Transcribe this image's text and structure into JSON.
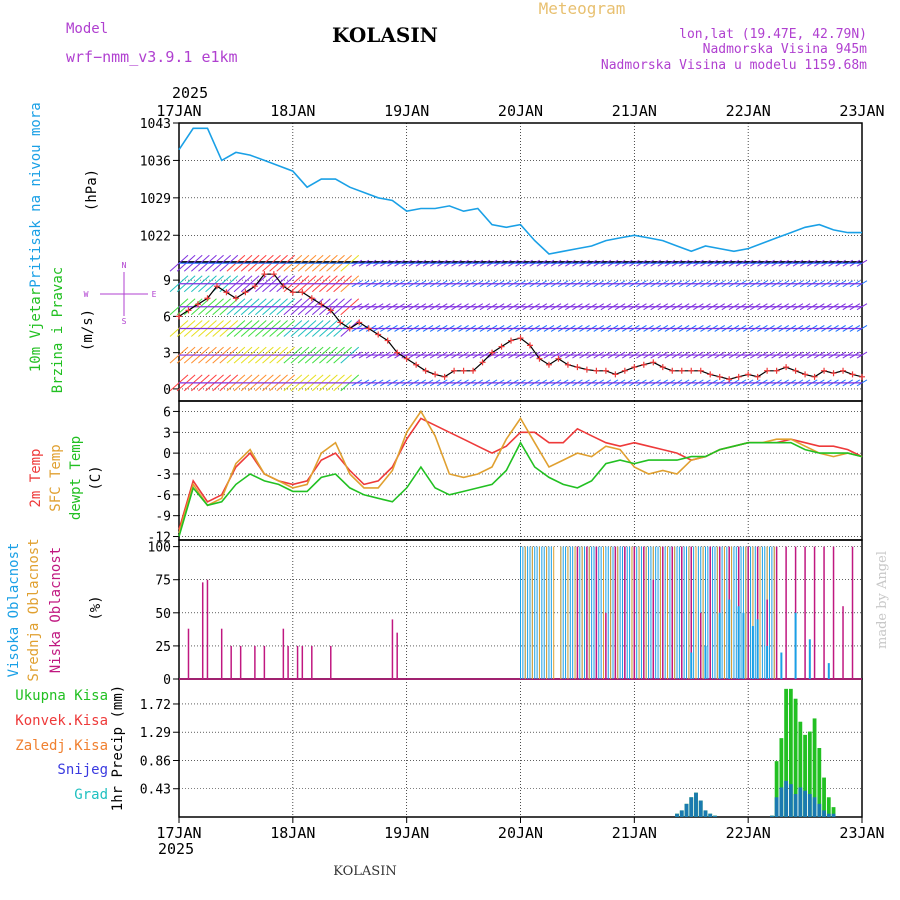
{
  "header": {
    "model_label": "Model",
    "model_name": "wrf−nmm_v3.9.1  e1km",
    "station": "KOLASIN",
    "product": "Meteogram",
    "lonlat": "lon,lat (19.47E, 42.79N)",
    "elevation": "Nadmorska Visina 945m",
    "model_elevation": "Nadmorska Visina u modelu 1159.68m",
    "footer_station": "KOLASIN",
    "credit": "made by Angel",
    "year_top": "2025",
    "year_bottom": "2025"
  },
  "colors": {
    "pressure": "#1aa0e6",
    "t2m": "#ee3a3a",
    "sfc": "#e0a030",
    "dewpt": "#22c022",
    "high_cloud": "#1aa0e6",
    "mid_cloud": "#e0a030",
    "low_cloud": "#c01880",
    "total_precip": "#22c022",
    "conv_precip": "#ee3a3a",
    "ice_precip": "#f08030",
    "snow": "#3a3ae0",
    "hail": "#20c0c0"
  },
  "legend_labels": {
    "pressure": [
      "Pritisak na nivou mora",
      "(hPa)"
    ],
    "wind": [
      "10m Vjetar",
      "Brzina i Pravac",
      "(m/s)"
    ],
    "wind_rose": [
      "N",
      "W",
      "E",
      "S"
    ],
    "temp": [
      "2m Temp",
      "SFC Temp",
      "dewpt Temp",
      "(C)"
    ],
    "cloud": [
      "Visoka Oblacnost",
      "Srednja Oblacnost",
      "Niska Oblacnost",
      "(%)"
    ],
    "precip": [
      "Ukupna Kisa",
      "Konvek.Kisa",
      "Zaledj.Kisa",
      "Snijeg",
      "Grad",
      "1hr Precip (mm)"
    ]
  },
  "chart_data": [
    {
      "type": "line",
      "title": "Pritisak na nivou mora",
      "ylabel": "(hPa)",
      "x_ticks": [
        "17JAN",
        "18JAN",
        "19JAN",
        "20JAN",
        "21JAN",
        "22JAN",
        "23JAN"
      ],
      "yticks": [
        1022,
        1029,
        1036,
        1043
      ],
      "ylim": [
        1017,
        1043
      ],
      "x": [
        0,
        3,
        6,
        9,
        12,
        15,
        18,
        21,
        24,
        27,
        30,
        33,
        36,
        39,
        42,
        45,
        48,
        51,
        54,
        57,
        60,
        63,
        66,
        69,
        72,
        75,
        78,
        81,
        84,
        87,
        90,
        93,
        96,
        99,
        102,
        105,
        108,
        111,
        114,
        117,
        120,
        123,
        126,
        129,
        132,
        135,
        138,
        141,
        144
      ],
      "series": [
        {
          "name": "Pritisak na nivou mora",
          "values": [
            1038,
            1042,
            1042,
            1036,
            1037.5,
            1037,
            1036,
            1035,
            1034,
            1031,
            1032.5,
            1032.5,
            1031,
            1030,
            1029,
            1028.5,
            1026.5,
            1027,
            1027,
            1027.5,
            1026.5,
            1027,
            1024,
            1023.5,
            1024,
            1021,
            1018.5,
            1019,
            1019.5,
            1020,
            1021,
            1021.5,
            1022,
            1021.5,
            1021,
            1020,
            1019,
            1020,
            1019.5,
            1019,
            1019.5,
            1020.5,
            1021.5,
            1022.5,
            1023.5,
            1024,
            1023,
            1022.5,
            1022.5
          ]
        }
      ]
    },
    {
      "type": "scatter",
      "title": "10m Vjetar Brzina i Pravac",
      "ylabel": "(m/s)",
      "yticks": [
        0,
        3,
        6,
        9
      ],
      "ylim": [
        -1,
        10.5
      ],
      "x": [
        0,
        2,
        4,
        6,
        8,
        10,
        12,
        14,
        16,
        18,
        20,
        22,
        24,
        26,
        28,
        30,
        32,
        34,
        36,
        38,
        40,
        42,
        44,
        46,
        48,
        50,
        52,
        54,
        56,
        58,
        60,
        62,
        64,
        66,
        68,
        70,
        72,
        74,
        76,
        78,
        80,
        82,
        84,
        86,
        88,
        90,
        92,
        94,
        96,
        98,
        100,
        102,
        104,
        106,
        108,
        110,
        112,
        114,
        116,
        118,
        120,
        122,
        124,
        126,
        128,
        130,
        132,
        134,
        136,
        138,
        140,
        142,
        144
      ],
      "series": [
        {
          "name": "Brzina",
          "values": [
            6,
            6.5,
            7,
            7.5,
            8.5,
            8,
            7.5,
            8,
            8.5,
            9.5,
            9.5,
            8.5,
            8,
            8,
            7.5,
            7,
            6.5,
            5.5,
            5,
            5.5,
            5,
            4.5,
            4,
            3,
            2.5,
            2,
            1.5,
            1.2,
            1,
            1.5,
            1.5,
            1.5,
            2.2,
            3,
            3.5,
            4,
            4.2,
            3.6,
            2.5,
            2,
            2.5,
            2,
            1.8,
            1.6,
            1.5,
            1.5,
            1.2,
            1.5,
            1.8,
            2,
            2.2,
            1.8,
            1.5,
            1.5,
            1.5,
            1.5,
            1.2,
            1,
            0.8,
            1,
            1.2,
            1,
            1.5,
            1.5,
            1.8,
            1.5,
            1.2,
            1,
            1.5,
            1.3,
            1.5,
            1.2,
            1
          ]
        }
      ]
    },
    {
      "type": "line",
      "title": "2m Temp / SFC Temp / dewpt Temp",
      "ylabel": "(C)",
      "yticks": [
        -12,
        -9,
        -6,
        -3,
        0,
        3,
        6
      ],
      "ylim": [
        -12.5,
        7.5
      ],
      "x": [
        0,
        3,
        6,
        9,
        12,
        15,
        18,
        21,
        24,
        27,
        30,
        33,
        36,
        39,
        42,
        45,
        48,
        51,
        54,
        57,
        60,
        63,
        66,
        69,
        72,
        75,
        78,
        81,
        84,
        87,
        90,
        93,
        96,
        99,
        102,
        105,
        108,
        111,
        114,
        117,
        120,
        123,
        126,
        129,
        132,
        135,
        138,
        141,
        144
      ],
      "series": [
        {
          "name": "2m Temp",
          "values": [
            -11,
            -4,
            -7,
            -6,
            -2,
            0,
            -3,
            -4,
            -4.5,
            -4,
            -1,
            0,
            -2.5,
            -4.5,
            -4,
            -2,
            2,
            5,
            4,
            3,
            2,
            1,
            0,
            1,
            3,
            3,
            1.5,
            1.5,
            3.5,
            2.5,
            1.5,
            1,
            1.5,
            1,
            0.5,
            0,
            -1,
            -0.5,
            0.5,
            1,
            1.5,
            1.5,
            1.5,
            2,
            1.5,
            1,
            1,
            0.5,
            -0.5
          ]
        },
        {
          "name": "SFC Temp",
          "values": [
            -11.5,
            -4.5,
            -7.5,
            -6.5,
            -1.5,
            0.5,
            -3,
            -4,
            -5,
            -4.5,
            0,
            1.5,
            -3,
            -5,
            -5,
            -2.5,
            3,
            6,
            2.5,
            -3,
            -3.5,
            -3,
            -2,
            2,
            5,
            1.5,
            -2,
            -1,
            0,
            -0.5,
            1,
            0.5,
            -2,
            -3,
            -2.5,
            -3,
            -1,
            -0.5,
            0.5,
            1,
            1.5,
            1.5,
            2,
            2,
            1,
            0,
            -0.5,
            0,
            -0.5
          ]
        },
        {
          "name": "dewpt Temp",
          "values": [
            -12,
            -5,
            -7.5,
            -7,
            -4.5,
            -3,
            -4,
            -4.5,
            -5.5,
            -5.5,
            -3.5,
            -3,
            -5,
            -6,
            -6.5,
            -7,
            -5,
            -2,
            -5,
            -6,
            -5.5,
            -5,
            -4.5,
            -2.5,
            1.5,
            -2,
            -3.5,
            -4.5,
            -5,
            -4,
            -1.5,
            -1,
            -1.5,
            -1,
            -1,
            -1,
            -0.5,
            -0.5,
            0.5,
            1,
            1.5,
            1.5,
            1.5,
            1.5,
            0.5,
            0,
            0,
            0,
            -0.5
          ]
        }
      ]
    },
    {
      "type": "bar",
      "title": "Visoka / Srednja / Niska Oblacnost",
      "ylabel": "(%)",
      "yticks": [
        0,
        25,
        50,
        75,
        100
      ],
      "ylim": [
        0,
        105
      ],
      "low": {
        "x": [
          2,
          5,
          6,
          9,
          11,
          13,
          16,
          18,
          22,
          23,
          25,
          26,
          28,
          32,
          45,
          46
        ],
        "values": [
          38,
          73,
          75,
          38,
          25,
          25,
          25,
          25,
          38,
          25,
          25,
          25,
          25,
          25,
          45,
          35
        ]
      },
      "high_start": 72,
      "high_end": 126,
      "high_gap": [
        79,
        80
      ],
      "low_late_x": [
        84,
        86,
        88,
        90,
        92,
        94,
        96,
        98,
        100,
        102,
        104,
        106,
        108,
        110,
        112,
        114,
        116,
        118,
        120,
        122,
        124,
        126,
        128,
        130,
        132,
        134,
        136,
        138,
        140,
        142
      ],
      "low_late_values": [
        100,
        100,
        100,
        50,
        100,
        100,
        100,
        100,
        75,
        100,
        100,
        100,
        100,
        50,
        100,
        100,
        100,
        100,
        100,
        100,
        60,
        100,
        100,
        100,
        100,
        100,
        100,
        100,
        55,
        100
      ],
      "mid_late_x": [
        108,
        111,
        114,
        116,
        118,
        119,
        121,
        122,
        124,
        127,
        130,
        133,
        137
      ],
      "mid_late_values": [
        20,
        25,
        50,
        60,
        55,
        50,
        40,
        45,
        25,
        20,
        50,
        30,
        12
      ]
    },
    {
      "type": "bar",
      "title": "1hr Precip",
      "ylabel": "1hr Precip (mm)",
      "yticks": [
        0.43,
        0.86,
        1.29,
        1.72
      ],
      "ylim": [
        0,
        2.1
      ],
      "x": [
        105,
        106,
        107,
        108,
        109,
        110,
        111,
        112,
        113,
        114,
        115,
        116,
        117,
        118,
        119,
        120,
        121,
        122,
        123,
        124,
        125,
        126,
        127,
        128,
        129,
        130,
        131,
        132,
        133,
        134,
        135,
        136,
        137,
        138
      ],
      "series": [
        {
          "name": "Ukupna Kisa",
          "values": [
            0.05,
            0.1,
            0.2,
            0.3,
            0.37,
            0.25,
            0.1,
            0.05,
            0.02,
            0,
            0,
            0,
            0,
            0,
            0,
            0,
            0,
            0,
            0,
            0,
            0.02,
            0.85,
            1.2,
            1.95,
            1.95,
            1.8,
            1.45,
            1.25,
            1.3,
            1.5,
            1.05,
            0.6,
            0.3,
            0.15
          ]
        },
        {
          "name": "Snijeg",
          "values": [
            0.05,
            0.1,
            0.2,
            0.3,
            0.37,
            0.25,
            0.1,
            0.05,
            0.02,
            0,
            0,
            0,
            0,
            0,
            0,
            0,
            0,
            0,
            0,
            0,
            0.02,
            0.3,
            0.45,
            0.55,
            0.5,
            0.35,
            0.45,
            0.4,
            0.35,
            0.3,
            0.2,
            0.1,
            0.05,
            0.05
          ]
        }
      ]
    }
  ]
}
